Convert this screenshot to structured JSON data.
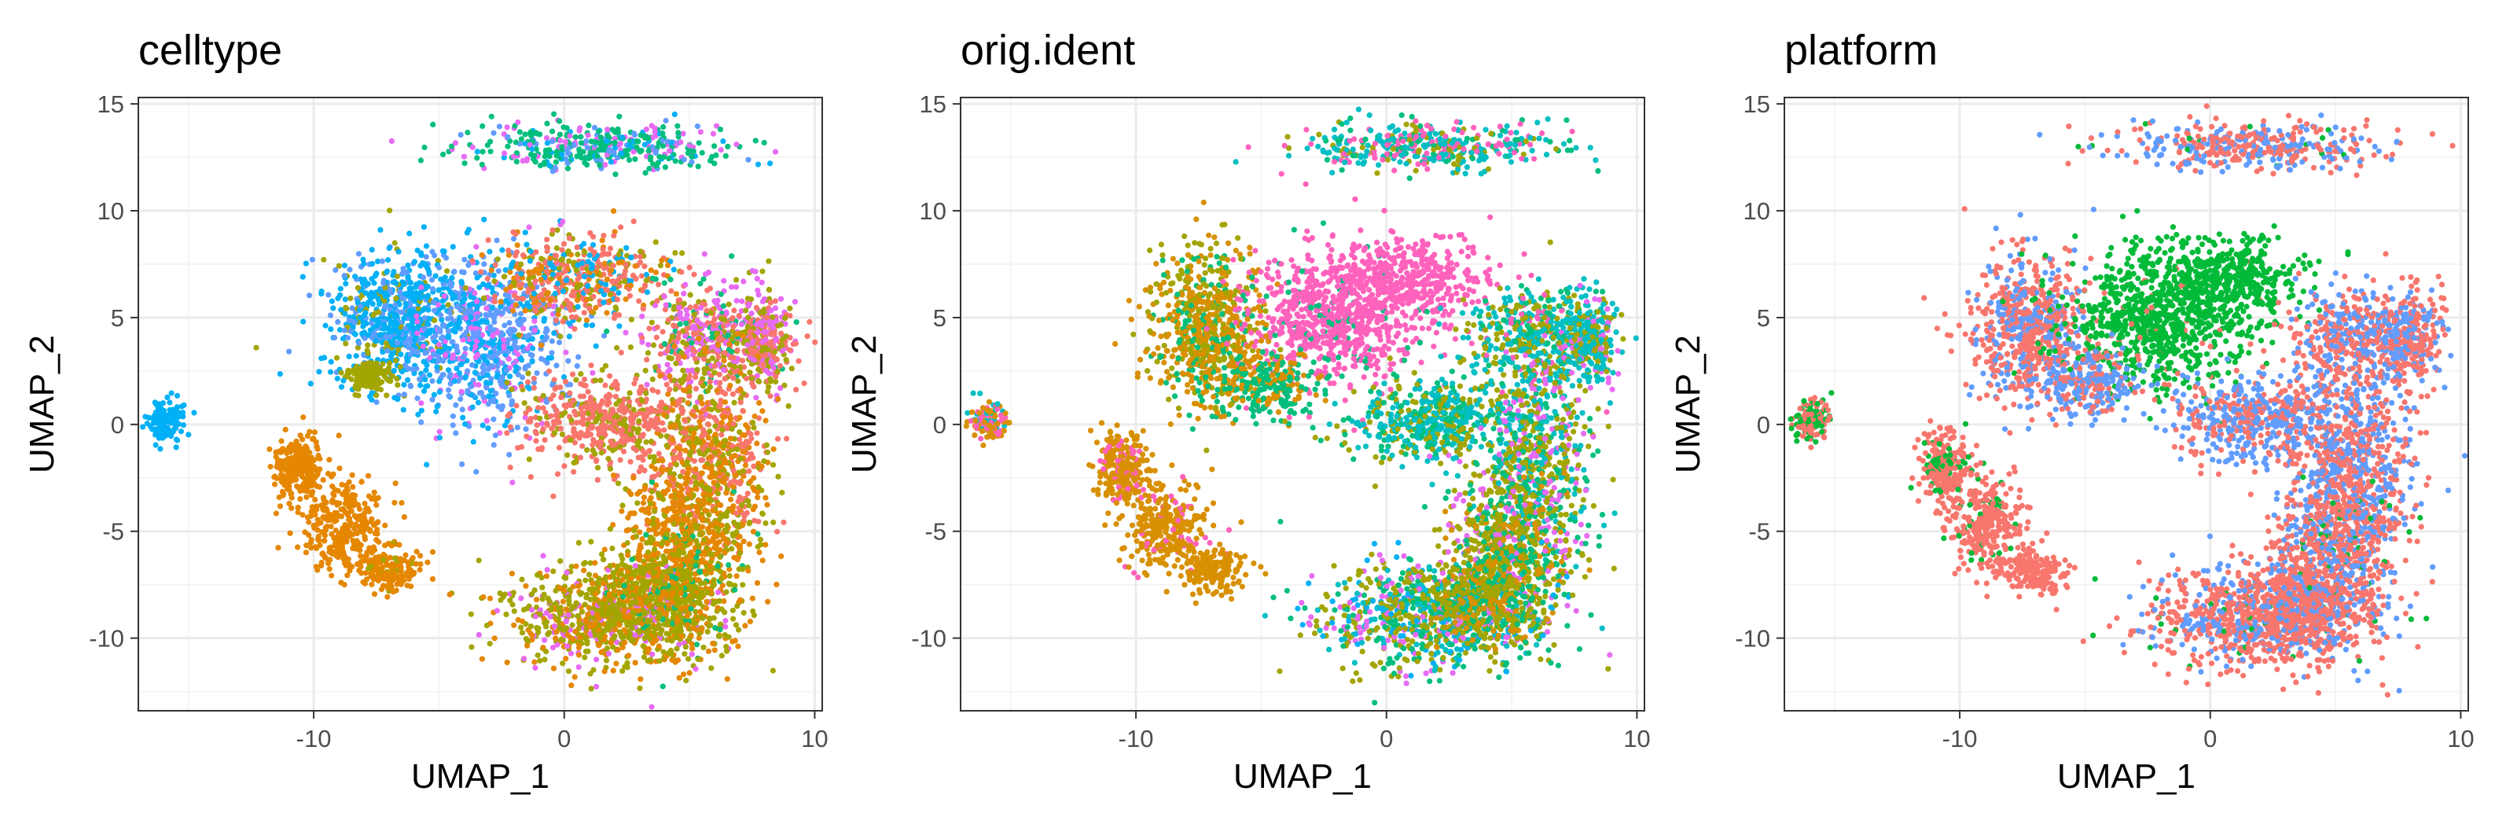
{
  "chart_data": [
    {
      "type": "scatter",
      "title": "celltype",
      "xlabel": "UMAP_1",
      "ylabel": "UMAP_2",
      "xlim": [
        -17,
        10.3
      ],
      "ylim": [
        -13.4,
        15.3
      ],
      "xticks": [
        -10,
        0,
        10
      ],
      "yticks": [
        -10,
        -5,
        0,
        5,
        10,
        15
      ],
      "xtick_labels": [
        "-10",
        "0",
        "10"
      ],
      "ytick_labels": [
        "-10",
        "-5",
        "0",
        "5",
        "10",
        "15"
      ],
      "grid": true,
      "legend": "none",
      "colors": [
        "#F8766D",
        "#E58700",
        "#A3A500",
        "#00BF7D",
        "#00B0F6",
        "#619CFF",
        "#E76BF3"
      ],
      "clusters": [
        {
          "cx": -15.9,
          "cy": 0.2,
          "sx": 0.35,
          "sy": 0.45,
          "n": 140,
          "mix": [
            [
              4,
              1
            ]
          ]
        },
        {
          "cx": -10.6,
          "cy": -2.0,
          "sx": 0.5,
          "sy": 0.8,
          "n": 240,
          "mix": [
            [
              1,
              1
            ]
          ]
        },
        {
          "cx": -8.8,
          "cy": -4.8,
          "sx": 0.8,
          "sy": 1.1,
          "n": 300,
          "mix": [
            [
              1,
              1
            ]
          ]
        },
        {
          "cx": -7.0,
          "cy": -6.9,
          "sx": 0.6,
          "sy": 0.5,
          "n": 160,
          "mix": [
            [
              1,
              0.9
            ],
            [
              2,
              0.1
            ]
          ]
        },
        {
          "cx": -6.5,
          "cy": 5.0,
          "sx": 1.4,
          "sy": 1.6,
          "n": 700,
          "mix": [
            [
              4,
              0.7
            ],
            [
              5,
              0.2
            ],
            [
              2,
              0.1
            ]
          ]
        },
        {
          "cx": -3.0,
          "cy": 4.0,
          "sx": 1.5,
          "sy": 2.0,
          "n": 700,
          "mix": [
            [
              5,
              0.55
            ],
            [
              4,
              0.25
            ],
            [
              6,
              0.2
            ]
          ]
        },
        {
          "cx": -7.8,
          "cy": 2.3,
          "sx": 0.5,
          "sy": 0.4,
          "n": 120,
          "mix": [
            [
              2,
              1
            ]
          ]
        },
        {
          "cx": 0.5,
          "cy": 6.8,
          "sx": 1.8,
          "sy": 0.9,
          "n": 500,
          "mix": [
            [
              0,
              0.45
            ],
            [
              2,
              0.2
            ],
            [
              4,
              0.15
            ],
            [
              1,
              0.2
            ]
          ]
        },
        {
          "cx": 1.5,
          "cy": 13.0,
          "sx": 2.6,
          "sy": 0.55,
          "n": 400,
          "mix": [
            [
              3,
              0.5
            ],
            [
              6,
              0.2
            ],
            [
              4,
              0.15
            ],
            [
              5,
              0.15
            ]
          ]
        },
        {
          "cx": 5.8,
          "cy": 4.0,
          "sx": 1.4,
          "sy": 1.2,
          "n": 450,
          "mix": [
            [
              0,
              0.35
            ],
            [
              6,
              0.3
            ],
            [
              2,
              0.2
            ],
            [
              3,
              0.15
            ]
          ]
        },
        {
          "cx": 8.0,
          "cy": 4.0,
          "sx": 0.6,
          "sy": 1.1,
          "n": 250,
          "mix": [
            [
              6,
              0.4
            ],
            [
              2,
              0.3
            ],
            [
              0,
              0.3
            ]
          ]
        },
        {
          "cx": 1.8,
          "cy": 0.2,
          "sx": 1.6,
          "sy": 1.0,
          "n": 500,
          "mix": [
            [
              0,
              0.75
            ],
            [
              2,
              0.25
            ]
          ]
        },
        {
          "cx": 5.8,
          "cy": -1.5,
          "sx": 1.2,
          "sy": 2.2,
          "n": 600,
          "mix": [
            [
              0,
              0.4
            ],
            [
              1,
              0.35
            ],
            [
              2,
              0.25
            ]
          ]
        },
        {
          "cx": 5.0,
          "cy": -5.5,
          "sx": 1.2,
          "sy": 1.8,
          "n": 600,
          "mix": [
            [
              1,
              0.55
            ],
            [
              2,
              0.4
            ],
            [
              3,
              0.05
            ]
          ]
        },
        {
          "cx": 2.0,
          "cy": -9.0,
          "sx": 2.2,
          "sy": 1.2,
          "n": 900,
          "mix": [
            [
              2,
              0.55
            ],
            [
              1,
              0.3
            ],
            [
              6,
              0.15
            ]
          ]
        },
        {
          "cx": 4.0,
          "cy": -8.0,
          "sx": 1.2,
          "sy": 1.3,
          "n": 400,
          "mix": [
            [
              2,
              0.6
            ],
            [
              1,
              0.3
            ],
            [
              3,
              0.1
            ]
          ]
        }
      ]
    },
    {
      "type": "scatter",
      "title": "orig.ident",
      "xlabel": "UMAP_1",
      "ylabel": "UMAP_2",
      "xlim": [
        -17,
        10.3
      ],
      "ylim": [
        -13.4,
        15.3
      ],
      "xticks": [
        -10,
        0,
        10
      ],
      "yticks": [
        -10,
        -5,
        0,
        5,
        10,
        15
      ],
      "xtick_labels": [
        "-10",
        "0",
        "10"
      ],
      "ytick_labels": [
        "-10",
        "-5",
        "0",
        "5",
        "10",
        "15"
      ],
      "grid": true,
      "legend": "none",
      "colors": [
        "#F8766D",
        "#D89000",
        "#A3A500",
        "#39B600",
        "#00BF7D",
        "#00BFC4",
        "#00B0F6",
        "#9590FF",
        "#E76BF3",
        "#FF62BC"
      ],
      "clusters": [
        {
          "cx": -15.9,
          "cy": 0.1,
          "sx": 0.35,
          "sy": 0.4,
          "n": 140,
          "mix": [
            [
              1,
              0.5
            ],
            [
              9,
              0.3
            ],
            [
              5,
              0.2
            ]
          ]
        },
        {
          "cx": -10.6,
          "cy": -2.0,
          "sx": 0.5,
          "sy": 0.8,
          "n": 240,
          "mix": [
            [
              1,
              0.85
            ],
            [
              9,
              0.15
            ]
          ]
        },
        {
          "cx": -8.8,
          "cy": -4.8,
          "sx": 0.8,
          "sy": 1.1,
          "n": 300,
          "mix": [
            [
              1,
              0.85
            ],
            [
              9,
              0.15
            ]
          ]
        },
        {
          "cx": -7.0,
          "cy": -6.9,
          "sx": 0.6,
          "sy": 0.5,
          "n": 160,
          "mix": [
            [
              1,
              1
            ]
          ]
        },
        {
          "cx": -7.2,
          "cy": 4.5,
          "sx": 1.1,
          "sy": 1.8,
          "n": 700,
          "mix": [
            [
              1,
              0.5
            ],
            [
              2,
              0.3
            ],
            [
              4,
              0.2
            ]
          ]
        },
        {
          "cx": -2.0,
          "cy": 5.0,
          "sx": 1.8,
          "sy": 1.6,
          "n": 800,
          "mix": [
            [
              9,
              0.9
            ],
            [
              4,
              0.1
            ]
          ]
        },
        {
          "cx": 0.8,
          "cy": 6.8,
          "sx": 1.5,
          "sy": 0.9,
          "n": 400,
          "mix": [
            [
              9,
              1
            ]
          ]
        },
        {
          "cx": -4.8,
          "cy": 2.0,
          "sx": 1.0,
          "sy": 0.8,
          "n": 250,
          "mix": [
            [
              4,
              0.6
            ],
            [
              1,
              0.4
            ]
          ]
        },
        {
          "cx": 1.5,
          "cy": 13.0,
          "sx": 2.6,
          "sy": 0.55,
          "n": 400,
          "mix": [
            [
              5,
              0.4
            ],
            [
              9,
              0.3
            ],
            [
              2,
              0.15
            ],
            [
              4,
              0.15
            ]
          ]
        },
        {
          "cx": 5.8,
          "cy": 4.0,
          "sx": 1.4,
          "sy": 1.2,
          "n": 450,
          "mix": [
            [
              5,
              0.4
            ],
            [
              2,
              0.3
            ],
            [
              4,
              0.2
            ],
            [
              9,
              0.1
            ]
          ]
        },
        {
          "cx": 8.0,
          "cy": 4.0,
          "sx": 0.6,
          "sy": 1.1,
          "n": 250,
          "mix": [
            [
              5,
              0.5
            ],
            [
              2,
              0.3
            ],
            [
              8,
              0.2
            ]
          ]
        },
        {
          "cx": 1.8,
          "cy": 0.2,
          "sx": 1.6,
          "sy": 1.0,
          "n": 500,
          "mix": [
            [
              5,
              0.45
            ],
            [
              2,
              0.3
            ],
            [
              4,
              0.25
            ]
          ]
        },
        {
          "cx": 5.8,
          "cy": -1.5,
          "sx": 1.2,
          "sy": 2.2,
          "n": 600,
          "mix": [
            [
              2,
              0.35
            ],
            [
              5,
              0.3
            ],
            [
              8,
              0.2
            ],
            [
              4,
              0.15
            ]
          ]
        },
        {
          "cx": 5.0,
          "cy": -5.5,
          "sx": 1.2,
          "sy": 1.8,
          "n": 600,
          "mix": [
            [
              2,
              0.45
            ],
            [
              4,
              0.25
            ],
            [
              8,
              0.15
            ],
            [
              1,
              0.15
            ]
          ]
        },
        {
          "cx": 2.0,
          "cy": -9.0,
          "sx": 2.2,
          "sy": 1.2,
          "n": 900,
          "mix": [
            [
              2,
              0.35
            ],
            [
              4,
              0.2
            ],
            [
              6,
              0.15
            ],
            [
              8,
              0.15
            ],
            [
              5,
              0.15
            ]
          ]
        },
        {
          "cx": 4.0,
          "cy": -8.0,
          "sx": 1.2,
          "sy": 1.3,
          "n": 400,
          "mix": [
            [
              2,
              0.5
            ],
            [
              4,
              0.3
            ],
            [
              1,
              0.2
            ]
          ]
        }
      ]
    },
    {
      "type": "scatter",
      "title": "platform",
      "xlabel": "UMAP_1",
      "ylabel": "UMAP_2",
      "xlim": [
        -17,
        10.3
      ],
      "ylim": [
        -13.4,
        15.3
      ],
      "xticks": [
        -10,
        0,
        10
      ],
      "yticks": [
        -10,
        -5,
        0,
        5,
        10,
        15
      ],
      "xtick_labels": [
        "-10",
        "0",
        "10"
      ],
      "ytick_labels": [
        "-10",
        "-5",
        "0",
        "5",
        "10",
        "15"
      ],
      "grid": true,
      "legend": "none",
      "colors": [
        "#F8766D",
        "#00BA38",
        "#619CFF"
      ],
      "clusters": [
        {
          "cx": -15.9,
          "cy": 0.2,
          "sx": 0.35,
          "sy": 0.45,
          "n": 140,
          "mix": [
            [
              0,
              0.6
            ],
            [
              1,
              0.4
            ]
          ]
        },
        {
          "cx": -10.6,
          "cy": -2.0,
          "sx": 0.5,
          "sy": 0.8,
          "n": 240,
          "mix": [
            [
              0,
              0.85
            ],
            [
              1,
              0.15
            ]
          ]
        },
        {
          "cx": -8.8,
          "cy": -4.8,
          "sx": 0.8,
          "sy": 1.1,
          "n": 300,
          "mix": [
            [
              0,
              0.9
            ],
            [
              1,
              0.1
            ]
          ]
        },
        {
          "cx": -7.0,
          "cy": -6.9,
          "sx": 0.6,
          "sy": 0.5,
          "n": 160,
          "mix": [
            [
              0,
              1
            ]
          ]
        },
        {
          "cx": -7.2,
          "cy": 4.5,
          "sx": 1.1,
          "sy": 1.8,
          "n": 700,
          "mix": [
            [
              0,
              0.65
            ],
            [
              2,
              0.35
            ]
          ]
        },
        {
          "cx": -2.0,
          "cy": 5.0,
          "sx": 1.8,
          "sy": 1.6,
          "n": 800,
          "mix": [
            [
              1,
              0.95
            ],
            [
              0,
              0.05
            ]
          ]
        },
        {
          "cx": 0.8,
          "cy": 6.8,
          "sx": 1.5,
          "sy": 0.9,
          "n": 400,
          "mix": [
            [
              1,
              1
            ]
          ]
        },
        {
          "cx": -4.8,
          "cy": 2.0,
          "sx": 1.0,
          "sy": 0.8,
          "n": 250,
          "mix": [
            [
              2,
              0.6
            ],
            [
              0,
              0.4
            ]
          ]
        },
        {
          "cx": 1.5,
          "cy": 13.0,
          "sx": 2.6,
          "sy": 0.55,
          "n": 400,
          "mix": [
            [
              0,
              0.55
            ],
            [
              2,
              0.4
            ],
            [
              1,
              0.05
            ]
          ]
        },
        {
          "cx": 5.8,
          "cy": 4.0,
          "sx": 1.4,
          "sy": 1.2,
          "n": 450,
          "mix": [
            [
              0,
              0.6
            ],
            [
              2,
              0.4
            ]
          ]
        },
        {
          "cx": 8.0,
          "cy": 4.0,
          "sx": 0.6,
          "sy": 1.1,
          "n": 250,
          "mix": [
            [
              0,
              0.55
            ],
            [
              2,
              0.45
            ]
          ]
        },
        {
          "cx": 1.8,
          "cy": 0.2,
          "sx": 1.6,
          "sy": 1.0,
          "n": 500,
          "mix": [
            [
              2,
              0.6
            ],
            [
              0,
              0.4
            ]
          ]
        },
        {
          "cx": 5.8,
          "cy": -1.5,
          "sx": 1.2,
          "sy": 2.2,
          "n": 600,
          "mix": [
            [
              0,
              0.55
            ],
            [
              2,
              0.45
            ]
          ]
        },
        {
          "cx": 5.0,
          "cy": -5.5,
          "sx": 1.2,
          "sy": 1.8,
          "n": 600,
          "mix": [
            [
              0,
              0.6
            ],
            [
              2,
              0.35
            ],
            [
              1,
              0.05
            ]
          ]
        },
        {
          "cx": 2.0,
          "cy": -9.0,
          "sx": 2.2,
          "sy": 1.2,
          "n": 900,
          "mix": [
            [
              0,
              0.65
            ],
            [
              2,
              0.3
            ],
            [
              1,
              0.05
            ]
          ]
        },
        {
          "cx": 4.0,
          "cy": -8.0,
          "sx": 1.2,
          "sy": 1.3,
          "n": 400,
          "mix": [
            [
              0,
              0.7
            ],
            [
              2,
              0.3
            ]
          ]
        }
      ]
    }
  ]
}
